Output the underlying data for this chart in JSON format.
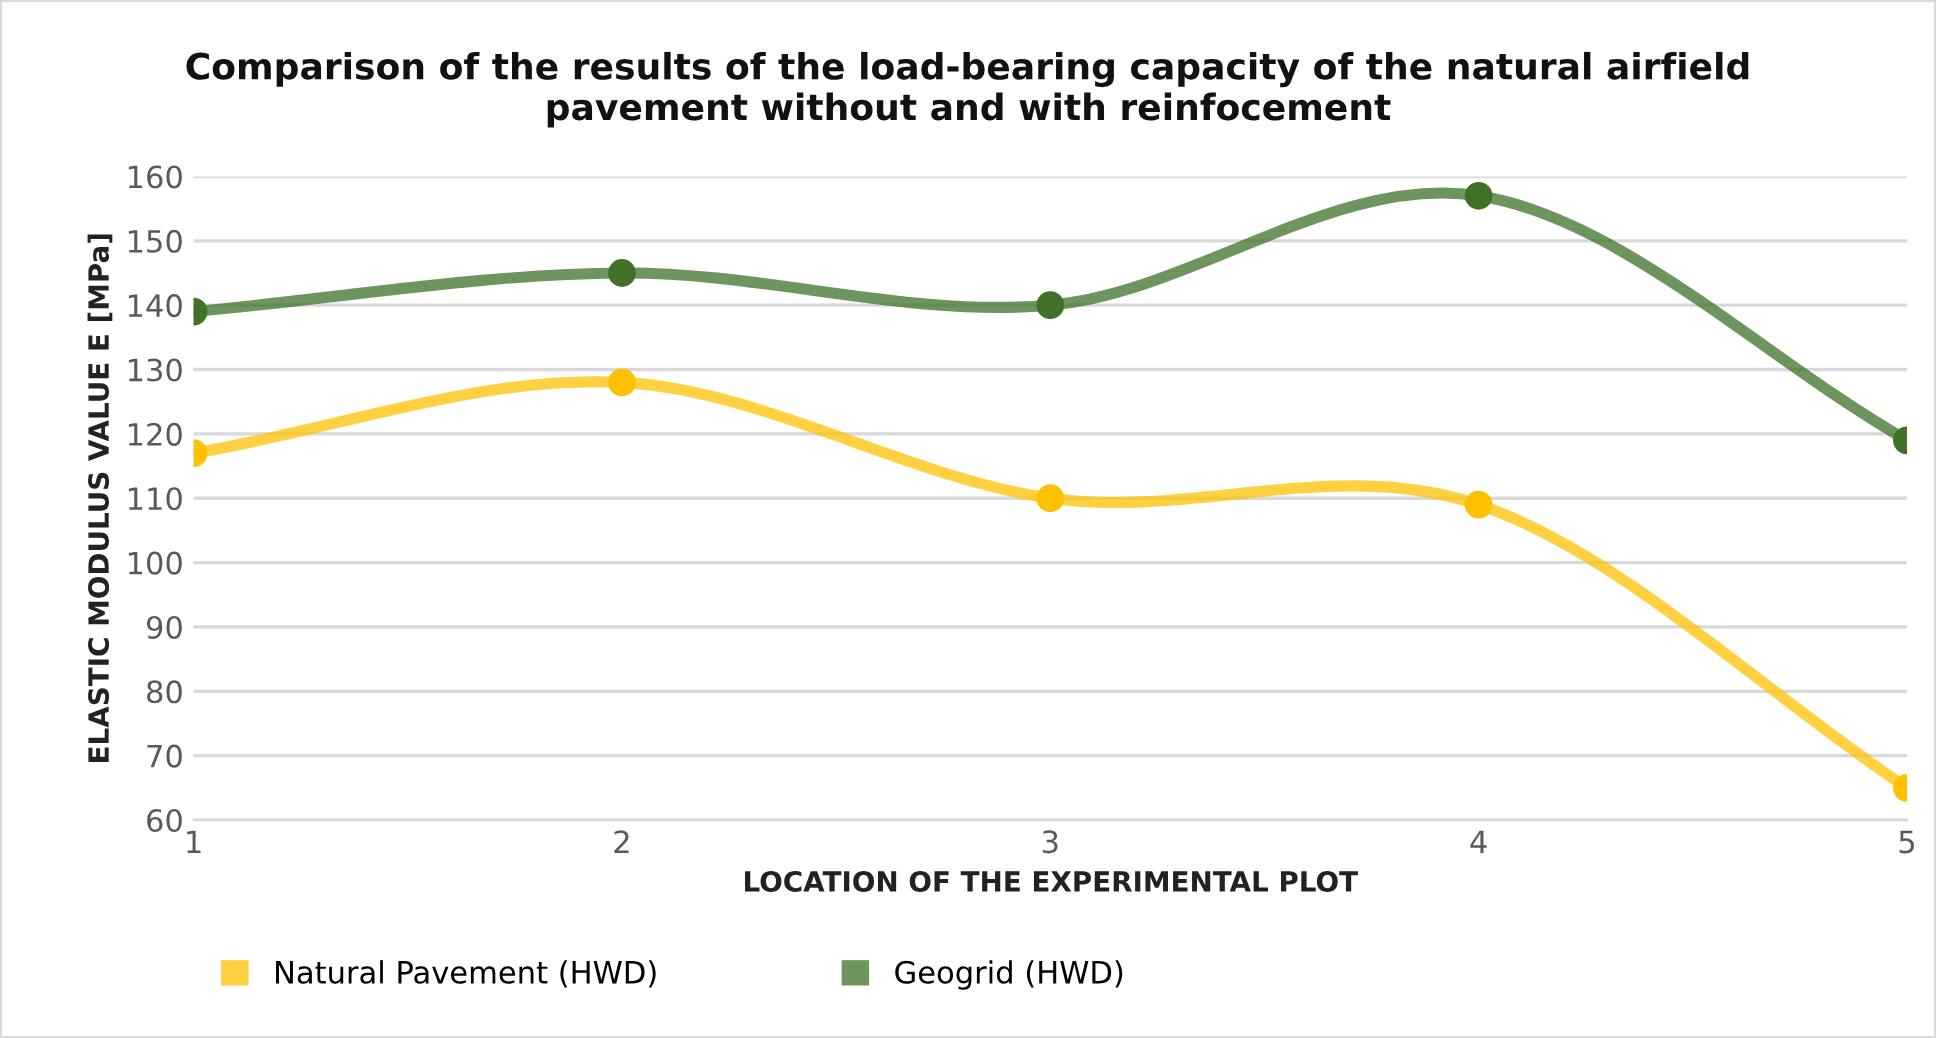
{
  "chart_data": {
    "type": "line",
    "title": "Comparison of the results of the load-bearing capacity of the natural airfield\npavement without and with reinfocement",
    "xlabel": "LOCATION OF THE EXPERIMENTAL PLOT",
    "ylabel": "ELASTIC MODULUS VALUE E [MPa]",
    "x": [
      1,
      2,
      3,
      4,
      5
    ],
    "series": [
      {
        "name": "Natural Pavement (HWD)",
        "color": "#ffc000",
        "values": [
          117,
          128,
          110,
          109,
          65
        ]
      },
      {
        "name": "Geogrid (HWD)",
        "color": "#3f7129",
        "values": [
          139,
          145,
          140,
          157,
          119
        ]
      }
    ],
    "xlim": [
      1,
      5
    ],
    "xticks": [
      1,
      2,
      3,
      4,
      5
    ],
    "ylim": [
      60,
      160
    ],
    "yticks": [
      60,
      70,
      80,
      90,
      100,
      110,
      120,
      130,
      140,
      150,
      160
    ],
    "grid": "y",
    "legend": "bottom left",
    "marker": "circle",
    "line_style": "solid"
  }
}
